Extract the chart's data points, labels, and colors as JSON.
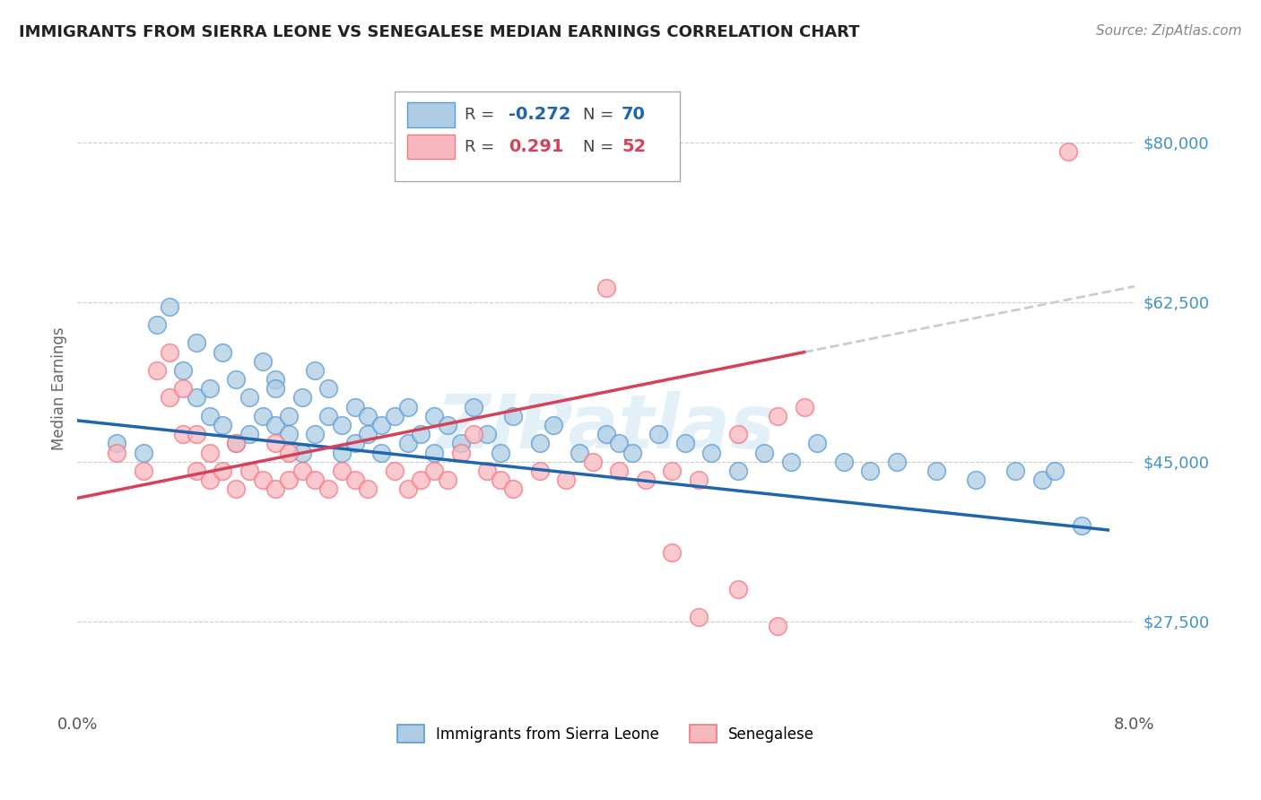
{
  "title": "IMMIGRANTS FROM SIERRA LEONE VS SENEGALESE MEDIAN EARNINGS CORRELATION CHART",
  "source": "Source: ZipAtlas.com",
  "ylabel": "Median Earnings",
  "xlim": [
    0.0,
    0.08
  ],
  "ylim": [
    18000,
    88000
  ],
  "yticks": [
    27500,
    45000,
    62500,
    80000
  ],
  "ytick_labels": [
    "$27,500",
    "$45,000",
    "$62,500",
    "$80,000"
  ],
  "xticks": [
    0.0,
    0.01,
    0.02,
    0.03,
    0.04,
    0.05,
    0.06,
    0.07,
    0.08
  ],
  "watermark": "ZIPatlas",
  "title_color": "#222222",
  "title_fontsize": 13,
  "blue_color": "#5b9bd5",
  "pink_color": "#f4777f",
  "blue_scatter_face": "#aecde4",
  "pink_scatter_face": "#f8b8c0",
  "blue_line_color": "#2166ac",
  "pink_line_color": "#d6415a",
  "dash_color": "#cccccc",
  "ylabel_color": "#666666",
  "ytick_color": "#4393c3",
  "background_color": "#ffffff",
  "legend_label_blue": "Immigrants from Sierra Leone",
  "legend_label_pink": "Senegalese",
  "blue_scatter_x": [
    0.003,
    0.005,
    0.006,
    0.007,
    0.008,
    0.009,
    0.009,
    0.01,
    0.01,
    0.011,
    0.011,
    0.012,
    0.012,
    0.013,
    0.013,
    0.014,
    0.014,
    0.015,
    0.015,
    0.015,
    0.016,
    0.016,
    0.017,
    0.017,
    0.018,
    0.018,
    0.019,
    0.019,
    0.02,
    0.02,
    0.021,
    0.021,
    0.022,
    0.022,
    0.023,
    0.023,
    0.024,
    0.025,
    0.025,
    0.026,
    0.027,
    0.027,
    0.028,
    0.029,
    0.03,
    0.031,
    0.032,
    0.033,
    0.035,
    0.036,
    0.038,
    0.04,
    0.041,
    0.042,
    0.044,
    0.046,
    0.048,
    0.05,
    0.052,
    0.054,
    0.056,
    0.058,
    0.06,
    0.062,
    0.065,
    0.068,
    0.071,
    0.073,
    0.074,
    0.076
  ],
  "blue_scatter_y": [
    47000,
    46000,
    60000,
    62000,
    55000,
    58000,
    52000,
    50000,
    53000,
    57000,
    49000,
    54000,
    47000,
    52000,
    48000,
    56000,
    50000,
    54000,
    49000,
    53000,
    50000,
    48000,
    52000,
    46000,
    55000,
    48000,
    50000,
    53000,
    46000,
    49000,
    51000,
    47000,
    50000,
    48000,
    49000,
    46000,
    50000,
    47000,
    51000,
    48000,
    50000,
    46000,
    49000,
    47000,
    51000,
    48000,
    46000,
    50000,
    47000,
    49000,
    46000,
    48000,
    47000,
    46000,
    48000,
    47000,
    46000,
    44000,
    46000,
    45000,
    47000,
    45000,
    44000,
    45000,
    44000,
    43000,
    44000,
    43000,
    44000,
    38000
  ],
  "pink_scatter_x": [
    0.003,
    0.005,
    0.006,
    0.007,
    0.007,
    0.008,
    0.008,
    0.009,
    0.009,
    0.01,
    0.01,
    0.011,
    0.012,
    0.012,
    0.013,
    0.014,
    0.015,
    0.015,
    0.016,
    0.016,
    0.017,
    0.018,
    0.019,
    0.02,
    0.021,
    0.022,
    0.024,
    0.025,
    0.026,
    0.027,
    0.028,
    0.029,
    0.03,
    0.031,
    0.032,
    0.033,
    0.035,
    0.037,
    0.039,
    0.041,
    0.043,
    0.045,
    0.047,
    0.05,
    0.053,
    0.055,
    0.045,
    0.047,
    0.05,
    0.053,
    0.04,
    0.075
  ],
  "pink_scatter_y": [
    46000,
    44000,
    55000,
    57000,
    52000,
    53000,
    48000,
    44000,
    48000,
    46000,
    43000,
    44000,
    47000,
    42000,
    44000,
    43000,
    47000,
    42000,
    46000,
    43000,
    44000,
    43000,
    42000,
    44000,
    43000,
    42000,
    44000,
    42000,
    43000,
    44000,
    43000,
    46000,
    48000,
    44000,
    43000,
    42000,
    44000,
    43000,
    45000,
    44000,
    43000,
    44000,
    43000,
    48000,
    50000,
    51000,
    35000,
    28000,
    31000,
    27000,
    64000,
    79000
  ],
  "blue_line_x0": 0.0,
  "blue_line_y0": 49500,
  "blue_line_x1": 0.078,
  "blue_line_y1": 37500,
  "pink_line_x0": 0.0,
  "pink_line_y0": 41000,
  "pink_line_x1": 0.055,
  "pink_line_y1": 57000,
  "dash_line_x0": 0.055,
  "dash_line_y0": 57000,
  "dash_line_x1": 0.081,
  "dash_line_y1": 64500
}
